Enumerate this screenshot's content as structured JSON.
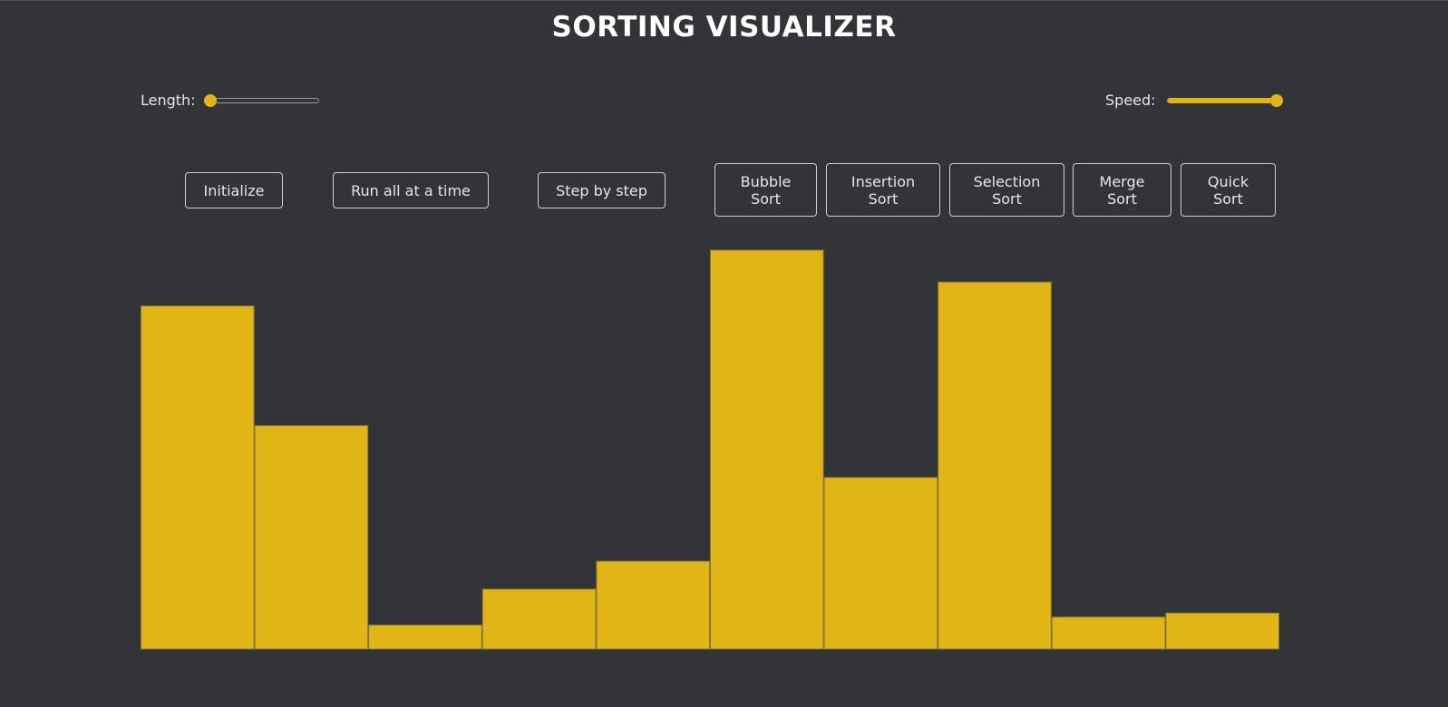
{
  "title": "SORTING VISUALIZER",
  "controls": {
    "length_label": "Length:",
    "length_value": 0,
    "speed_label": "Speed:",
    "speed_value": 1
  },
  "actions": {
    "initialize": "Initialize",
    "run_all": "Run all at a time",
    "step_by_step": "Step by step"
  },
  "algorithms": {
    "bubble": "Bubble\nSort",
    "insertion": "Insertion\nSort",
    "selection": "Selection\nSort",
    "merge": "Merge\nSort",
    "quick": "Quick\nSort"
  },
  "colors": {
    "background": "#333438",
    "accent": "#e1b515",
    "bar_border": "#8a7a3a"
  },
  "chart_data": {
    "type": "bar",
    "values": [
      86,
      56,
      6,
      15,
      22,
      100,
      43,
      92,
      8,
      9
    ],
    "ylim": [
      0,
      100
    ]
  }
}
